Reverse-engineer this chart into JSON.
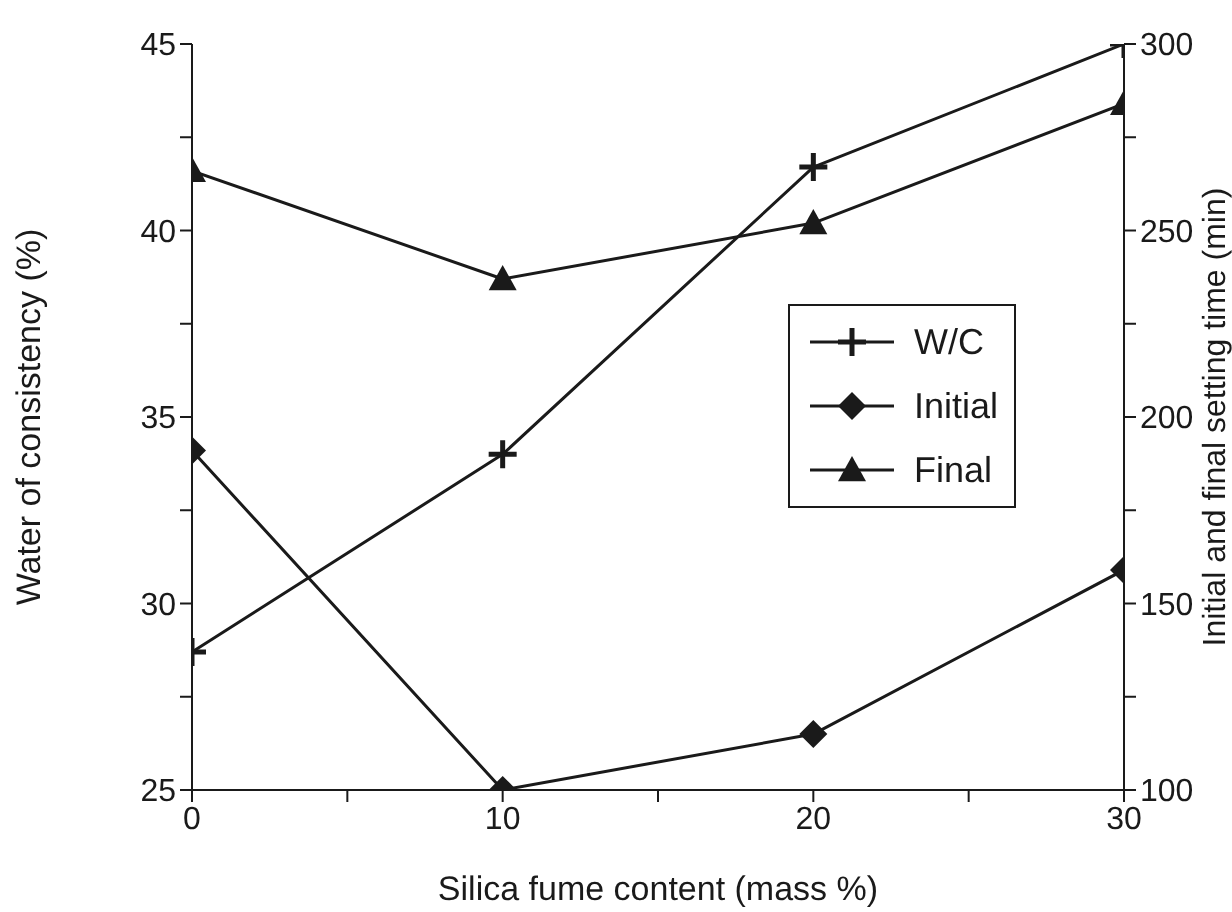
{
  "chart_data": {
    "type": "line",
    "xlabel": "Silica fume content  (mass %)",
    "ylabel": "Water of consistency (%)",
    "y2label": "Initial and final setting time (min)",
    "x": [
      0,
      10,
      20,
      30
    ],
    "xlim": [
      0,
      30
    ],
    "xticks": [
      0,
      {
        "value": 5,
        "label": null
      },
      10,
      {
        "value": 15,
        "label": null
      },
      20,
      {
        "value": 25,
        "label": null
      },
      30
    ],
    "ylim": [
      25,
      45
    ],
    "yticks": [
      25,
      {
        "value": 27.5,
        "label": null
      },
      30,
      {
        "value": 32.5,
        "label": null
      },
      35,
      {
        "value": 37.5,
        "label": null
      },
      40,
      {
        "value": 42.5,
        "label": null
      },
      45
    ],
    "y2lim": [
      100,
      300
    ],
    "y2ticks": [
      100,
      {
        "value": 125,
        "label": null
      },
      150,
      {
        "value": 175,
        "label": null
      },
      200,
      {
        "value": 225,
        "label": null
      },
      250,
      {
        "value": 275,
        "label": null
      },
      300
    ],
    "legend": "right",
    "grid": false,
    "series": [
      {
        "name": "W/C",
        "color": "#1a1a1a",
        "marker": "cross",
        "values": [
          28.7,
          34.0,
          41.7,
          45.0
        ]
      },
      {
        "name": "Initial",
        "color": "#1a1a1a",
        "marker": "diamond",
        "axis": "y2",
        "values": [
          191,
          100,
          115,
          159
        ]
      },
      {
        "name": "Final",
        "color": "#1a1a1a",
        "marker": "triangle",
        "axis": "y2",
        "values": [
          266,
          237,
          252,
          284
        ]
      }
    ]
  }
}
